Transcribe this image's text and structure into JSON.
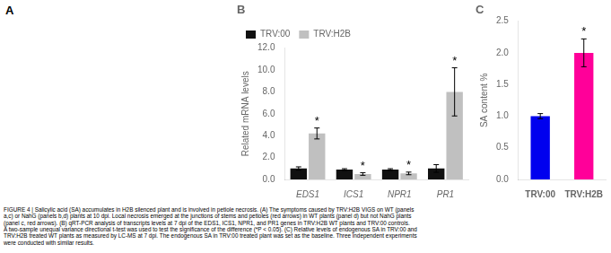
{
  "chart_data": [
    {
      "type": "bar",
      "title": "B",
      "categories": [
        "EDS1",
        "ICS1",
        "NPR1",
        "PR1"
      ],
      "series": [
        {
          "name": "TRV:00",
          "color": "#111111",
          "values": [
            1.0,
            0.9,
            0.9,
            1.0
          ],
          "errors": [
            0.15,
            0.08,
            0.08,
            0.35
          ]
        },
        {
          "name": "TRV:H2B",
          "color": "#c0c0c0",
          "values": [
            4.2,
            0.5,
            0.55,
            8.0
          ],
          "errors": [
            0.5,
            0.12,
            0.12,
            2.2
          ]
        }
      ],
      "ylabel": "Related mRNA levels",
      "ylim": [
        0,
        12
      ],
      "yticks": [
        {
          "value": 0,
          "label": "0.0"
        },
        {
          "value": 2,
          "label": "2.0"
        },
        {
          "value": 4,
          "label": "4.0"
        },
        {
          "value": 6,
          "label": "6.0"
        },
        {
          "value": 8,
          "label": "8.0"
        },
        {
          "value": 10,
          "label": "10.0"
        },
        {
          "value": 12,
          "label": "12.0"
        }
      ],
      "legend": "upper left",
      "grid": false,
      "annotations": [
        {
          "text": "*",
          "category": "EDS1",
          "series": "TRV:H2B"
        },
        {
          "text": "*",
          "category": "ICS1",
          "series": "TRV:H2B"
        },
        {
          "text": "*",
          "category": "NPR1",
          "series": "TRV:H2B"
        },
        {
          "text": "*",
          "category": "PR1",
          "series": "TRV:H2B"
        }
      ]
    },
    {
      "type": "bar",
      "title": "C",
      "categories": [
        "TRV:00",
        "TRV:H2B"
      ],
      "values": [
        1.0,
        2.0
      ],
      "errors": [
        0.04,
        0.22
      ],
      "colors": [
        "#0000ee",
        "#ff0099"
      ],
      "ylabel": "SA content %",
      "ylim": [
        0,
        2.5
      ],
      "yticks": [
        {
          "value": 0,
          "label": "0.0"
        },
        0.5,
        {
          "value": 1,
          "label": "1.0"
        },
        1.5,
        {
          "value": 2,
          "label": "2.0"
        },
        2.5
      ],
      "grid": false,
      "annotations": [
        {
          "text": "*",
          "category": "TRV:H2B"
        }
      ]
    }
  ],
  "annotations": [
    "A",
    "FIGURE 4 | Salicylic acid (SA) accumulates in H2B silenced plant and is involved in petiole necrosis. (A) The symptoms caused by TRV:H2B VIGS on WT (panels\na,c) or NahG (panels b,d) plants at 10 dpi. Local necrosis emerged at the junctions of stems and petioles (red arrows) in WT plants (panel d) but not NahG plants\n(panel c, red arrows). (B) qRT-PCR analysis of transcripts levels at 7 dpi of the EDS1, ICS1, NPR1, and PR1 genes in TRV:H2B WT plants and TRV:00 controls.\nA two-sample unequal variance directional t-test was used to test the significance of the difference (*P < 0.05). (C) Relative levels of endogenous SA in TRV:00 and\nTRV:H2B treated WT plants as measured by LC-MS at 7 dpi. The endogenous SA in TRV:00 treated plant was set as the baseline. Three independent experiments\nwere conducted with similar results."
  ]
}
